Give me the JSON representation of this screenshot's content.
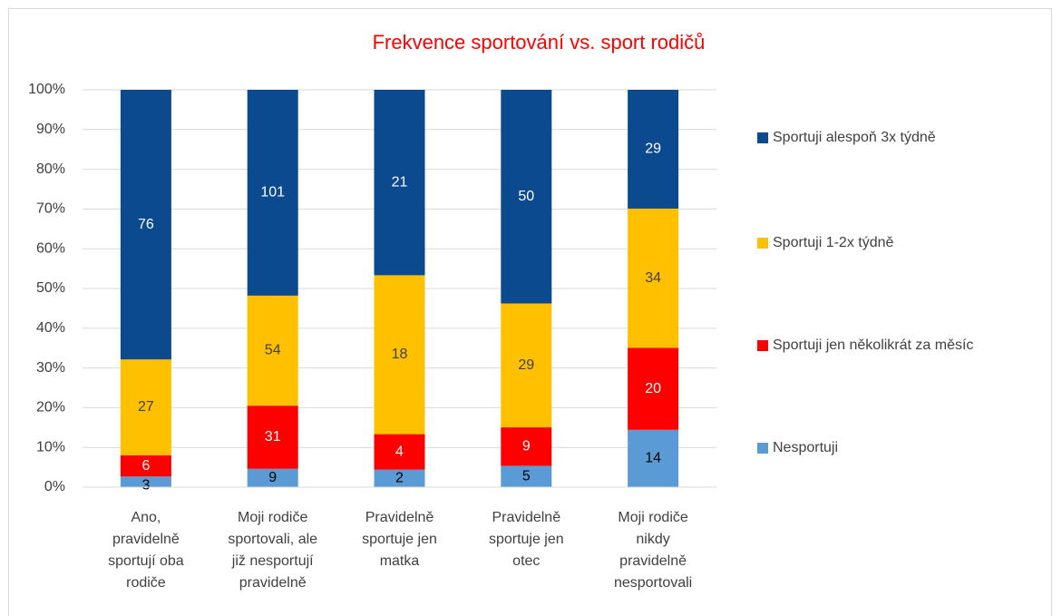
{
  "chart_data": {
    "type": "stacked_percent_bar",
    "title": "Frekvence sportování vs. sport rodičů",
    "categories": [
      "Ano,\npravidelně\nsportují oba\nrodiče",
      "Moji rodiče\nsportovali, ale\njiž nesportují\npravidelně",
      "Pravidelně\nsportuje jen\nmatka",
      "Pravidelně\nsportuje jen\notec",
      "Moji rodiče\nnikdy\npravidelně\nnesportovali"
    ],
    "series": [
      {
        "name": "Nesportuji",
        "color": "#5b9bd5",
        "label_color": "#000000",
        "values": [
          3,
          9,
          2,
          5,
          14
        ]
      },
      {
        "name": "Sportuji jen několikrát za měsíc",
        "color": "#ff0000",
        "label_color": "#ffffff",
        "values": [
          6,
          31,
          4,
          9,
          20
        ]
      },
      {
        "name": "Sportuji 1-2x týdně",
        "color": "#ffc000",
        "label_color": "#404040",
        "values": [
          27,
          54,
          18,
          29,
          34
        ]
      },
      {
        "name": "Sportuji alespoň 3x týdně",
        "color": "#0b4a8f",
        "label_color": "#ffffff",
        "values": [
          76,
          101,
          21,
          50,
          29
        ]
      }
    ],
    "ylim": [
      0,
      100
    ],
    "yticks": [
      {
        "value": 0,
        "label": "0%"
      },
      {
        "value": 10,
        "label": "10%"
      },
      {
        "value": 20,
        "label": "20%"
      },
      {
        "value": 30,
        "label": "30%"
      },
      {
        "value": 40,
        "label": "40%"
      },
      {
        "value": 50,
        "label": "50%"
      },
      {
        "value": 60,
        "label": "60%"
      },
      {
        "value": 70,
        "label": "70%"
      },
      {
        "value": 80,
        "label": "80%"
      },
      {
        "value": 90,
        "label": "90%"
      },
      {
        "value": 100,
        "label": "100%"
      }
    ],
    "grid": true,
    "legend": "right"
  }
}
